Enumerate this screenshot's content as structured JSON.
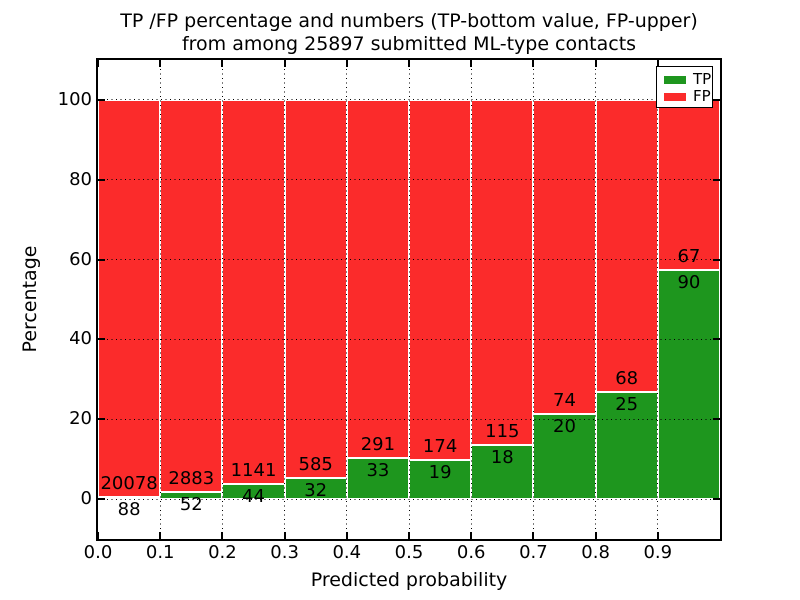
{
  "title": {
    "line1": "TP /FP percentage and numbers (TP-bottom value, FP-upper)",
    "line2": "from among 25897 submitted ML-type contacts"
  },
  "y_axis": {
    "label": "Percentage",
    "tick_labels": [
      "0",
      "20",
      "40",
      "60",
      "80",
      "100"
    ],
    "tick_values": [
      0,
      20,
      40,
      60,
      80,
      100
    ]
  },
  "x_axis": {
    "label": "Predicted probability",
    "tick_labels": [
      "0.0",
      "0.1",
      "0.2",
      "0.3",
      "0.4",
      "0.5",
      "0.6",
      "0.7",
      "0.8",
      "0.9"
    ],
    "tick_values": [
      0,
      0.1,
      0.2,
      0.3,
      0.4,
      0.5,
      0.6,
      0.7,
      0.8,
      0.9
    ]
  },
  "legend": {
    "items": [
      {
        "label": "TP",
        "color": "#1e961e"
      },
      {
        "label": "FP",
        "color": "#fb2b2b"
      }
    ]
  },
  "chart_data": {
    "type": "bar",
    "stacked": true,
    "normalized": "each bin scaled so TP+FP = 100%",
    "title": "TP /FP percentage and numbers (TP-bottom value, FP-upper) from among 25897 submitted ML-type contacts",
    "xlabel": "Predicted probability",
    "ylabel": "Percentage",
    "total_submitted": 25897,
    "bin_starts": [
      0.0,
      0.1,
      0.2,
      0.3,
      0.4,
      0.5,
      0.6,
      0.7,
      0.8,
      0.9
    ],
    "bin_width": 0.1,
    "series": [
      {
        "name": "TP",
        "color": "#1e961e",
        "counts": [
          88,
          52,
          44,
          32,
          33,
          19,
          18,
          20,
          25,
          90
        ]
      },
      {
        "name": "FP",
        "color": "#fb2b2b",
        "counts": [
          20078,
          2883,
          1141,
          585,
          291,
          174,
          115,
          74,
          68,
          67
        ]
      }
    ],
    "tp_percent": [
      0.44,
      1.77,
      3.71,
      5.19,
      10.19,
      9.84,
      13.53,
      21.28,
      26.88,
      57.32
    ],
    "bar_count_labels": {
      "tp_position": "below TP/FP boundary",
      "fp_position": "above TP/FP boundary"
    },
    "ylim": [
      -10,
      110
    ],
    "xlim": [
      0.0,
      1.0
    ],
    "grid": true,
    "grid_style": "dotted",
    "legend_position": "upper right"
  }
}
